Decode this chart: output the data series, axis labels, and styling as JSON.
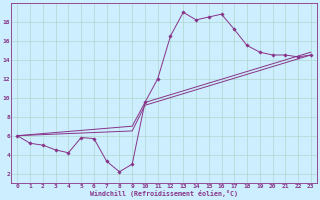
{
  "xlabel": "Windchill (Refroidissement éolien,°C)",
  "background_color": "#cceeff",
  "grid_color": "#b0d8cc",
  "line_color": "#883388",
  "xlim": [
    -0.5,
    23.5
  ],
  "ylim": [
    1.0,
    20.0
  ],
  "xticks": [
    0,
    1,
    2,
    3,
    4,
    5,
    6,
    7,
    8,
    9,
    10,
    11,
    12,
    13,
    14,
    15,
    16,
    17,
    18,
    19,
    20,
    21,
    22,
    23
  ],
  "yticks": [
    2,
    4,
    6,
    8,
    10,
    12,
    14,
    16,
    18
  ],
  "series1_x": [
    0,
    1,
    2,
    3,
    4,
    5,
    6,
    7,
    8,
    9,
    10,
    11,
    12,
    13,
    14,
    15,
    16,
    17,
    18,
    19,
    20,
    21,
    22,
    23
  ],
  "series1_y": [
    6.0,
    5.2,
    5.0,
    4.5,
    4.2,
    5.8,
    5.7,
    3.3,
    2.2,
    3.0,
    9.5,
    12.0,
    16.5,
    19.0,
    18.2,
    18.5,
    18.8,
    17.2,
    15.5,
    14.8,
    14.5,
    14.5,
    14.3,
    14.5
  ],
  "series2_x": [
    0,
    9,
    10,
    23
  ],
  "series2_y": [
    6.0,
    6.5,
    9.2,
    14.5
  ],
  "series3_x": [
    0,
    9,
    10,
    23
  ],
  "series3_y": [
    6.0,
    7.0,
    9.5,
    14.8
  ]
}
